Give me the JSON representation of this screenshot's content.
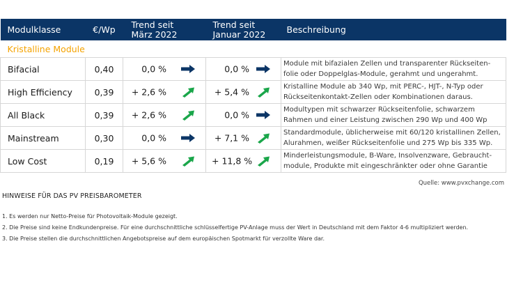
{
  "table": {
    "headers": {
      "modulklasse": "Modulklasse",
      "price": "€/Wp",
      "trend1_line1": "Trend seit",
      "trend1_line2": "März 2022",
      "trend2_line1": "Trend seit",
      "trend2_line2": "Januar 2022",
      "beschreibung": "Beschreibung"
    },
    "section_label": "Kristalline Module",
    "rows": [
      {
        "name": "Bifacial",
        "price": "0,40",
        "trend1": "0,0 %",
        "trend1_icon": "arrow-right-icon",
        "trend2": "0,0 %",
        "trend2_icon": "arrow-right-icon",
        "desc_line1": "Module mit bifazialen Zellen und transparenter Rückseiten-",
        "desc_line2": "folie oder Doppelglas-Module, gerahmt und ungerahmt."
      },
      {
        "name": "High Efficiency",
        "price": "0,39",
        "trend1": "+ 2,6 %",
        "trend1_icon": "arrow-up-right-icon",
        "trend2": "+ 5,4 %",
        "trend2_icon": "arrow-up-right-icon",
        "desc_line1": "Kristalline Module ab 340 Wp, mit PERC-, HJT-, N-Typ oder",
        "desc_line2": "Rückseitenkontakt-Zellen oder Kombinationen daraus."
      },
      {
        "name": "All Black",
        "price": "0,39",
        "trend1": "+ 2,6 %",
        "trend1_icon": "arrow-up-right-icon",
        "trend2": "0,0 %",
        "trend2_icon": "arrow-right-icon",
        "desc_line1": "Modultypen mit schwarzer Rückseitenfolie, schwarzem",
        "desc_line2": "Rahmen und einer Leistung  zwischen 290 Wp und 400 Wp"
      },
      {
        "name": "Mainstream",
        "price": "0,30",
        "trend1": "0,0 %",
        "trend1_icon": "arrow-right-icon",
        "trend2": "+ 7,1 %",
        "trend2_icon": "arrow-up-right-icon",
        "desc_line1": "Standardmodule, üblicherweise mit 60/120 kristallinen Zellen,",
        "desc_line2": "Alurahmen, weißer Rückseitenfolie und 275 Wp bis 335 Wp."
      },
      {
        "name": "Low Cost",
        "price": "0,19",
        "trend1": "+ 5,6 %",
        "trend1_icon": "arrow-up-right-icon",
        "trend2": "+ 11,8 %",
        "trend2_icon": "arrow-up-right-icon",
        "desc_line1": "Minderleistungsmodule, B-Ware, Insolvenzware, Gebraucht-",
        "desc_line2": "module, Produkte mit eingeschränkter oder ohne Garantie"
      }
    ]
  },
  "source": "Quelle: www.pvxchange.com",
  "notes_title": "HINWEISE FÜR DAS PV PREISBAROMETER",
  "notes": [
    "1.  Es werden nur Netto-Preise für Photovoltaik-Module gezeigt.",
    "2. Die Preise sind keine Endkundenpreise. Für eine durchschnittliche schlüsselfertige PV-Anlage muss der Wert in Deutschland mit dem Faktor 4-6 multipliziert werden.",
    "3. Die Preise stellen die durchschnittlichen Angebotspreise auf dem europäischen Spotmarkt für verzollte Ware dar."
  ],
  "colors": {
    "header_bg": "#0b3566",
    "section_label": "#f5a300",
    "arrow_flat": "#0b3566",
    "arrow_up": "#1aa64a",
    "grid": "#d6d6d6"
  }
}
